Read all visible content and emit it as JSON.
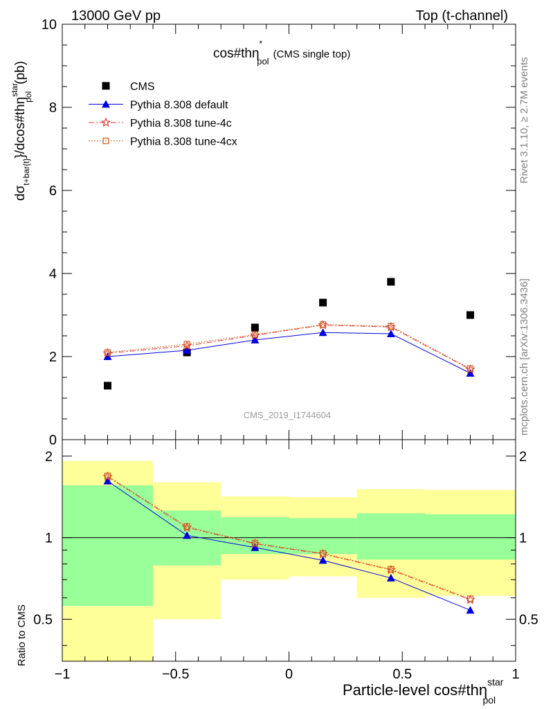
{
  "header": {
    "left": "13000 GeV pp",
    "right": "Top (t-channel)"
  },
  "side_labels": {
    "rivet": "Rivet 3.1.10, ≥ 2.7M events",
    "mcplots": "mcplots.cern.ch [arXiv:1306.3436]"
  },
  "watermark": "CMS_2019_I1744604",
  "chart_data": [
    {
      "type": "scatter",
      "title_main": "cos#thη",
      "title_sup": "*",
      "title_sub": "pol",
      "title_tail": "(CMS single top)",
      "ylabel_main": "dσ",
      "ylabel_sub1": "t+bar{t}",
      "ylabel_mid": "}/dcos#thη",
      "ylabel_sup": "star",
      "ylabel_sub2": "pol",
      "ylabel_unit": "(pb)",
      "xlim": [
        -1,
        1
      ],
      "ylim": [
        0,
        10
      ],
      "yticks": [
        "0",
        "2",
        "4",
        "6",
        "8",
        "10"
      ],
      "legend_position": "top-left",
      "x": [
        -0.8,
        -0.45,
        -0.15,
        0.15,
        0.45,
        0.8
      ],
      "series": [
        {
          "name": "CMS",
          "color": "#000000",
          "marker": "square",
          "values": [
            1.3,
            2.1,
            2.7,
            3.3,
            3.8,
            3.0
          ]
        },
        {
          "name": "Pythia 8.308 default",
          "color": "#0000dd",
          "marker": "triangle",
          "line": "solid",
          "values": [
            2.0,
            2.15,
            2.4,
            2.58,
            2.55,
            1.6
          ]
        },
        {
          "name": "Pythia 8.308 tune-4c",
          "color": "#dd3333",
          "marker": "star",
          "line": "dashdot",
          "values": [
            2.08,
            2.26,
            2.51,
            2.76,
            2.71,
            1.69
          ]
        },
        {
          "name": "Pythia 8.308 tune-4cx",
          "color": "#cc6622",
          "marker": "open-square",
          "line": "dotted",
          "values": [
            2.1,
            2.3,
            2.53,
            2.77,
            2.73,
            1.71
          ]
        }
      ]
    },
    {
      "type": "scatter",
      "ylabel": "Ratio to CMS",
      "xlabel_main": "Particle-level cos#thη",
      "xlabel_sup": "star",
      "xlabel_sub": "pol",
      "xlim": [
        -1,
        1
      ],
      "ylim": [
        0.35,
        2.3
      ],
      "yticks": [
        "0.5",
        "1",
        "2"
      ],
      "xticks": [
        "−1",
        "−0.5",
        "0",
        "0.5",
        "1"
      ],
      "reference_line": 1,
      "bands": {
        "edges": [
          -1.0,
          -0.6,
          -0.3,
          0.0,
          0.3,
          0.6,
          1.0
        ],
        "yellow_low": [
          0.35,
          0.5,
          0.7,
          0.72,
          0.6,
          0.61
        ],
        "yellow_high": [
          1.92,
          1.6,
          1.42,
          1.41,
          1.51,
          1.5
        ],
        "green_low": [
          0.56,
          0.79,
          0.87,
          0.87,
          0.83,
          0.83
        ],
        "green_high": [
          1.56,
          1.26,
          1.19,
          1.18,
          1.23,
          1.22
        ]
      },
      "x": [
        -0.8,
        -0.45,
        -0.15,
        0.15,
        0.45,
        0.8
      ],
      "series": [
        {
          "name": "Pythia 8.308 default",
          "color": "#0000dd",
          "marker": "triangle",
          "line": "solid",
          "values": [
            1.62,
            1.02,
            0.92,
            0.825,
            0.71,
            0.54
          ]
        },
        {
          "name": "Pythia 8.308 tune-4c",
          "color": "#dd3333",
          "marker": "star",
          "line": "dashdot",
          "values": [
            1.68,
            1.09,
            0.95,
            0.87,
            0.76,
            0.59
          ]
        },
        {
          "name": "Pythia 8.308 tune-4cx",
          "color": "#cc6622",
          "marker": "open-square",
          "line": "dotted",
          "values": [
            1.69,
            1.1,
            0.955,
            0.875,
            0.765,
            0.595
          ]
        }
      ]
    }
  ]
}
